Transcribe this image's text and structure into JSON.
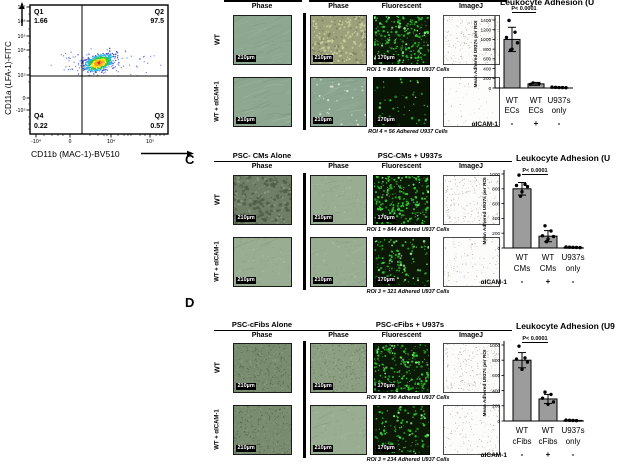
{
  "figure": {
    "flow_plot": {
      "y_axis_label": "CD11a (LFA-1)-FITC",
      "x_axis_label": "CD11b (MAC-1)-BV510",
      "y_ticks": [
        "10⁷",
        "10⁶",
        "10⁵",
        "10⁴",
        "10³",
        "0",
        "-10³"
      ],
      "x_ticks": [
        "-10⁴",
        "0",
        "10⁴",
        "10⁵"
      ],
      "quadrants": [
        {
          "label": "Q1",
          "value": "1.66"
        },
        {
          "label": "Q2",
          "value": "97.5"
        },
        {
          "label": "Q3",
          "value": "0.57"
        },
        {
          "label": "Q4",
          "value": "0.22"
        }
      ]
    },
    "panels": [
      {
        "letter": "",
        "alone_header": "",
        "combo_header": "",
        "alone_col": "Phase",
        "combo_cols": [
          "Phase",
          "Fluorescent",
          "ImageJ"
        ],
        "row_labels": [
          "WT",
          "WT + αICAM-1"
        ],
        "scales": {
          "phase": "210µm",
          "fluor": "170µm"
        },
        "captions": [
          "ROI 1 = 816 Adhered U937 Cells",
          "ROI 4 = 56 Adhered U937 Cells"
        ]
      },
      {
        "letter": "C",
        "alone_header": "PSC- CMs Alone",
        "combo_header": "PSC-CMs + U937s",
        "alone_col": "Phase",
        "combo_cols": [
          "Phase",
          "Fluorescent",
          "ImageJ"
        ],
        "row_labels": [
          "WT",
          "WT + αICAM-1"
        ],
        "scales": {
          "phase": "210µm",
          "fluor": "170µm"
        },
        "captions": [
          "ROI 1 = 844 Adhered U937 Cells",
          "ROI 3 = 321 Adhered U937 Cells"
        ]
      },
      {
        "letter": "D",
        "alone_header": "PSC-cFibs Alone",
        "combo_header": "PSC-cFibs + U937s",
        "alone_col": "Phase",
        "combo_cols": [
          "Phase",
          "Fluorescent",
          "ImageJ"
        ],
        "row_labels": [
          "WT",
          "WT + αICAM-1"
        ],
        "scales": {
          "phase": "210µm",
          "fluor": "170µm"
        },
        "captions": [
          "ROI 1 = 790 Adhered U937 Cells",
          "ROI 3 = 234 Adhered U937 Cells"
        ]
      }
    ]
  },
  "chart_data": [
    {
      "type": "bar",
      "title": "Leukocyte Adhesion (U",
      "ylabel": "Mean Adhered U937s per ROI",
      "p_label": "P< 0.0001",
      "ylim": [
        0,
        1400
      ],
      "ytick_step": 200,
      "categories": [
        "WT ECs",
        "WT ECs",
        "U937s only"
      ],
      "cat_line1": [
        "WT",
        "WT",
        "U937s"
      ],
      "cat_line2": [
        "ECs",
        "ECs",
        "only"
      ],
      "icam_label": "αICAM-1",
      "icam": [
        "-",
        "+",
        "-"
      ],
      "values": [
        1000,
        85,
        12
      ],
      "errors": [
        250,
        30,
        8
      ],
      "points": [
        [
          1390,
          1150,
          1040,
          930,
          800,
          780
        ],
        [
          105,
          90,
          75
        ],
        [
          18,
          14,
          10,
          8,
          6
        ]
      ]
    },
    {
      "type": "bar",
      "title": "Leukocyte Adhesion (U",
      "ylabel": "Mean Adhered U937s per ROI",
      "p_label": "P< 0.0001",
      "ylim": [
        0,
        1000
      ],
      "ytick_step": 200,
      "categories": [
        "WT CMs",
        "WT CMs",
        "U937s only"
      ],
      "cat_line1": [
        "WT",
        "WT",
        "U937s"
      ],
      "cat_line2": [
        "CMs",
        "CMs",
        "only"
      ],
      "icam_label": "αICAM-1",
      "icam": [
        "-",
        "+",
        "-"
      ],
      "values": [
        800,
        160,
        8
      ],
      "errors": [
        85,
        75,
        5
      ],
      "points": [
        [
          985,
          860,
          845,
          830,
          760,
          700
        ],
        [
          300,
          230,
          165,
          155,
          120,
          85
        ],
        [
          14,
          11,
          9,
          7,
          5
        ]
      ]
    },
    {
      "type": "bar",
      "title": "Leukocyte Adhesion (U9",
      "ylabel": "Mean Adhered U937s per ROI",
      "p_label": "P< 0.0001",
      "ylim": [
        0,
        1000
      ],
      "ytick_step": 200,
      "categories": [
        "WT cFibs",
        "WT cFibs",
        "U937s only"
      ],
      "cat_line1": [
        "WT",
        "WT",
        "U937s"
      ],
      "cat_line2": [
        "cFibs",
        "cFibs",
        "only"
      ],
      "icam_label": "αICAM-1",
      "icam": [
        "-",
        "+",
        "-"
      ],
      "values": [
        800,
        290,
        8
      ],
      "errors": [
        100,
        60,
        5
      ],
      "points": [
        [
          985,
          830,
          815,
          775,
          680
        ],
        [
          380,
          350,
          300,
          250,
          220
        ],
        [
          12,
          9,
          7,
          5
        ]
      ]
    }
  ],
  "colors": {
    "fluorescent_green": "#2fd12f",
    "bar_fill": "#9c9c9c",
    "phase_sage": "#8ea791"
  }
}
